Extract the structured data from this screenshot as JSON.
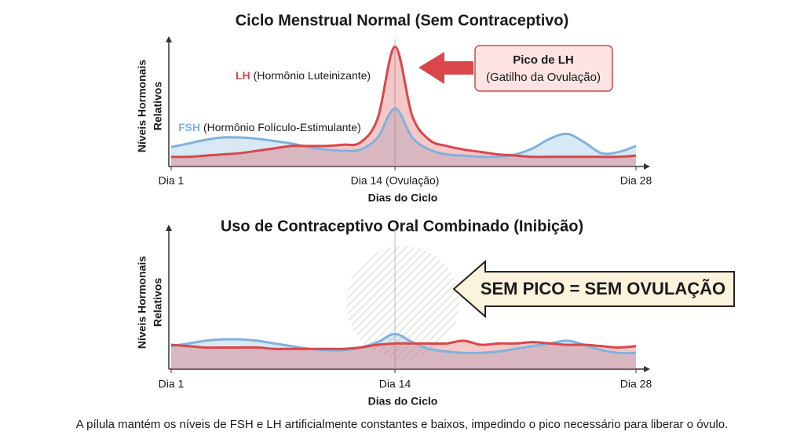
{
  "chart_data": [
    {
      "type": "line",
      "title": "Ciclo Menstrual Normal (Sem Contraceptivo)",
      "xlabel": "Dias do Ciclo",
      "ylabel": [
        "Níveis Hormonais",
        "Relativos"
      ],
      "x": [
        1,
        2,
        3,
        4,
        5,
        6,
        7,
        8,
        9,
        10,
        11,
        12,
        13,
        14,
        15,
        16,
        17,
        18,
        19,
        20,
        21,
        22,
        23,
        24,
        25,
        26,
        27,
        28
      ],
      "xlim": [
        1,
        28
      ],
      "xticks": [
        {
          "value": 1,
          "label": "Dia 1"
        },
        {
          "value": 14,
          "label": "Dia 14 (Ovulação)"
        },
        {
          "value": 28,
          "label": "Dia 28"
        }
      ],
      "ylim": [
        0,
        100
      ],
      "series": [
        {
          "name": "FSH",
          "description": "(Hormônio Folículo-Estimulante)",
          "color": "#7fb2db",
          "values": [
            16,
            19,
            22,
            24,
            24,
            23,
            21,
            19,
            16,
            14,
            13,
            14,
            24,
            48,
            24,
            14,
            10,
            9,
            8,
            8,
            10,
            15,
            23,
            27,
            20,
            11,
            12,
            17
          ]
        },
        {
          "name": "LH",
          "description": "(Hormônio Luteinizante)",
          "color": "#d9474b",
          "values": [
            8,
            8,
            9,
            10,
            11,
            13,
            15,
            17,
            17,
            17,
            18,
            20,
            40,
            99,
            42,
            22,
            17,
            14,
            12,
            10,
            9,
            8,
            8,
            8,
            8,
            8,
            8,
            9
          ]
        }
      ],
      "annotation": {
        "title": "Pico de LH",
        "text": "(Gatilho da Ovulação)"
      }
    },
    {
      "type": "line",
      "title": "Uso de Contraceptivo Oral Combinado (Inibição)",
      "xlabel": "Dias do Ciclo",
      "ylabel": [
        "Níveis Hormonais",
        "Relativos"
      ],
      "x": [
        1,
        2,
        3,
        4,
        5,
        6,
        7,
        8,
        9,
        10,
        11,
        12,
        13,
        14,
        15,
        16,
        17,
        18,
        19,
        20,
        21,
        22,
        23,
        24,
        25,
        26,
        27,
        28
      ],
      "xlim": [
        1,
        28
      ],
      "xticks": [
        {
          "value": 1,
          "label": "Dia 1"
        },
        {
          "value": 14,
          "label": "Dia 14"
        },
        {
          "value": 28,
          "label": "Dia 28"
        }
      ],
      "ylim": [
        0,
        100
      ],
      "series": [
        {
          "name": "FSH",
          "color": "#7fb2db",
          "values": [
            17,
            19,
            21,
            22,
            22,
            21,
            19,
            17,
            15,
            14,
            14,
            16,
            20,
            26,
            20,
            15,
            13,
            12,
            12,
            13,
            15,
            17,
            19,
            21,
            18,
            14,
            12,
            12
          ]
        },
        {
          "name": "LH",
          "color": "#d9474b",
          "values": [
            18,
            17,
            16,
            16,
            16,
            16,
            15,
            15,
            15,
            15,
            15,
            16,
            18,
            19,
            19,
            19,
            19,
            21,
            18,
            19,
            19,
            20,
            19,
            18,
            18,
            17,
            16,
            17
          ]
        }
      ],
      "annotation": {
        "text": "SEM PICO = SEM OVULAÇÃO"
      }
    }
  ],
  "caption": "A pílula mantém os níveis de FSH e LH artificialmente constantes e baixos, impedindo o pico necessário para liberar o óvulo."
}
